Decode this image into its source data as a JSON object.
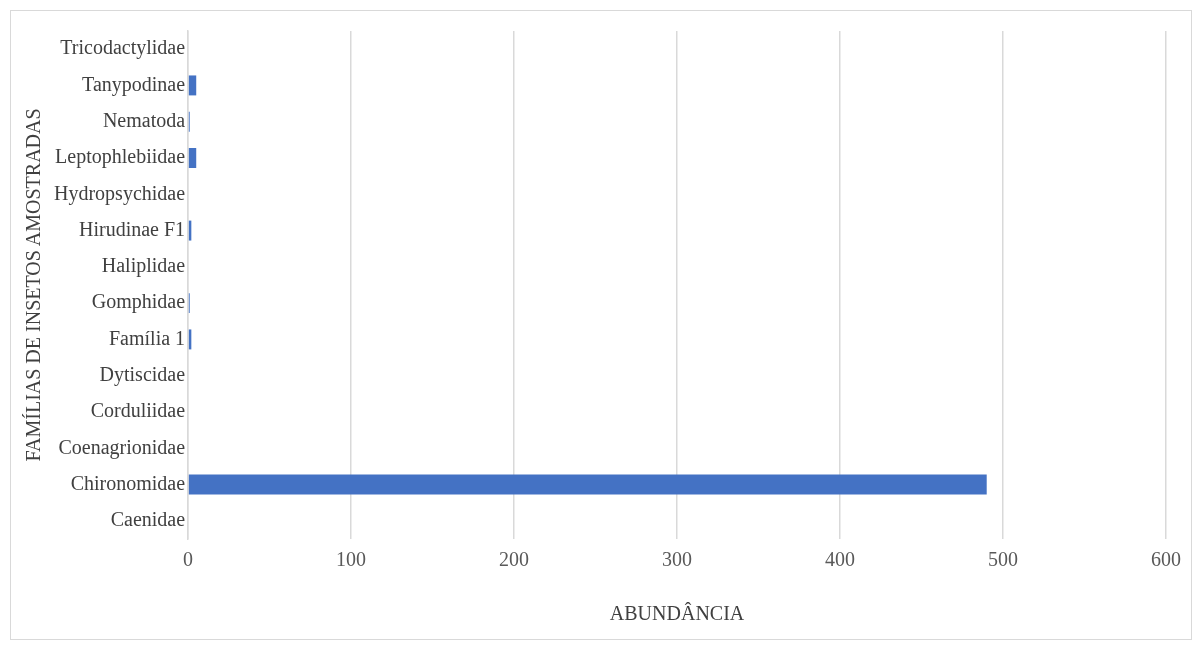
{
  "chart_data": {
    "type": "bar",
    "orientation": "horizontal",
    "xlabel": "ABUNDÂNCIA",
    "ylabel": "FAMÍLIAS DE INSETOS AMOSTRADAS",
    "categories": [
      "Tricodactylidae",
      "Tanypodinae",
      "Nematoda",
      "Leptophlebiidae",
      "Hydropsychidae",
      "Hirudinae F1",
      "Haliplidae",
      "Gomphidae",
      "Família 1",
      "Dytiscidae",
      "Corduliidae",
      "Coenagrionidae",
      "Chironomidae",
      "Caenidae"
    ],
    "values": [
      0,
      5,
      1,
      5,
      0,
      2,
      0,
      1,
      2,
      0,
      0,
      0,
      490,
      0
    ],
    "color": "#4472c4",
    "xlim": [
      0,
      600
    ],
    "xticks": [
      0,
      100,
      200,
      300,
      400,
      500,
      600
    ],
    "grid": "x"
  }
}
